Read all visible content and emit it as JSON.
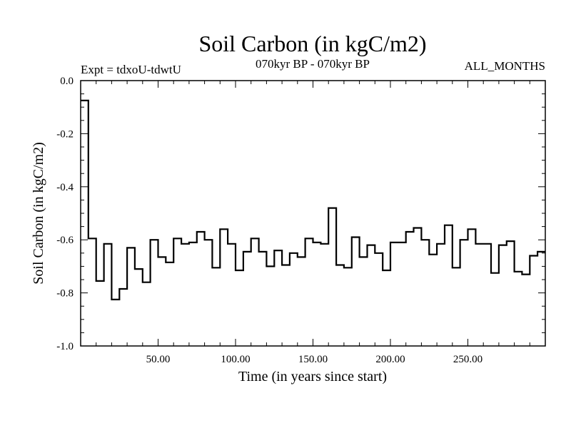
{
  "chart_data": {
    "type": "line",
    "step": true,
    "title": "Soil Carbon (in kgC/m2)",
    "experiment": "Expt = tdxoU-tdwtU",
    "period": "070kyr BP - 070kyr BP",
    "season": "ALL_MONTHS",
    "xlabel": "Time (in years since start)",
    "ylabel": "Soil Carbon (in kgC/m2)",
    "xlim": [
      0,
      300
    ],
    "ylim": [
      -1.0,
      0.0
    ],
    "x_ticks": [
      {
        "value": 50,
        "label": "50.00"
      },
      {
        "value": 100,
        "label": "100.00"
      },
      {
        "value": 150,
        "label": "150.00"
      },
      {
        "value": 200,
        "label": "200.00"
      },
      {
        "value": 250,
        "label": "250.00"
      }
    ],
    "y_ticks": [
      {
        "value": 0.0,
        "label": "0.0"
      },
      {
        "value": -0.2,
        "label": "-0.2"
      },
      {
        "value": -0.4,
        "label": "-0.4"
      },
      {
        "value": -0.6,
        "label": "-0.6"
      },
      {
        "value": -0.8,
        "label": "-0.8"
      },
      {
        "value": -1.0,
        "label": "-1.0"
      }
    ],
    "series": [
      {
        "name": "Soil Carbon",
        "bin_width": 5,
        "x_start": 0,
        "values": [
          -0.075,
          -0.595,
          -0.755,
          -0.615,
          -0.825,
          -0.785,
          -0.63,
          -0.71,
          -0.76,
          -0.6,
          -0.665,
          -0.685,
          -0.595,
          -0.615,
          -0.61,
          -0.57,
          -0.6,
          -0.705,
          -0.56,
          -0.615,
          -0.715,
          -0.645,
          -0.595,
          -0.645,
          -0.7,
          -0.64,
          -0.695,
          -0.65,
          -0.665,
          -0.595,
          -0.61,
          -0.615,
          -0.48,
          -0.695,
          -0.705,
          -0.59,
          -0.665,
          -0.62,
          -0.65,
          -0.715,
          -0.61,
          -0.61,
          -0.57,
          -0.555,
          -0.6,
          -0.655,
          -0.615,
          -0.545,
          -0.705,
          -0.6,
          -0.56,
          -0.615,
          -0.615,
          -0.725,
          -0.62,
          -0.605,
          -0.72,
          -0.73,
          -0.66,
          -0.645
        ]
      }
    ]
  }
}
